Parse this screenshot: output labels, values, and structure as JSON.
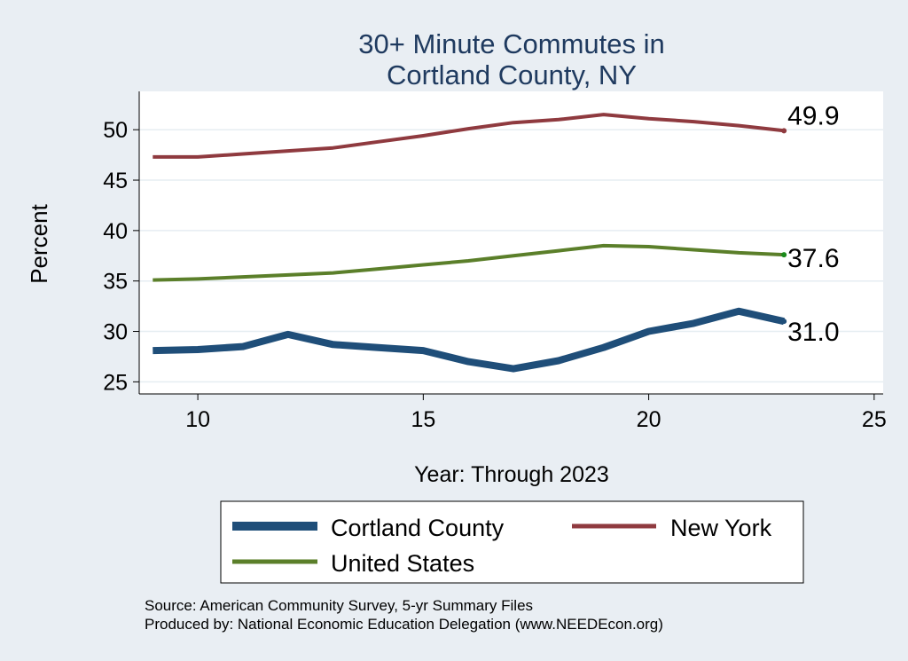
{
  "chart_data": {
    "type": "line",
    "title": [
      "30+ Minute Commutes in",
      "Cortland County, NY"
    ],
    "xlabel": "Year: Through 2023",
    "ylabel": "Percent",
    "xlim": [
      8.7,
      25.2
    ],
    "ylim": [
      23.8,
      53.8
    ],
    "xticks": [
      10,
      15,
      20,
      25
    ],
    "yticks": [
      25,
      30,
      35,
      40,
      45,
      50
    ],
    "grid": true,
    "legend_position": "bottom",
    "series": [
      {
        "name": "Cortland County",
        "color": "#1f4e79",
        "width": "thick",
        "x": [
          9,
          10,
          11,
          12,
          13,
          14,
          15,
          16,
          17,
          18,
          19,
          20,
          21,
          22,
          23
        ],
        "y": [
          28.1,
          28.2,
          28.5,
          29.7,
          28.7,
          28.4,
          28.1,
          27.0,
          26.3,
          27.1,
          28.4,
          30.0,
          30.8,
          32.0,
          31.0
        ],
        "end_label": "31.0"
      },
      {
        "name": "New York",
        "color": "#8f3a3f",
        "width": "medium",
        "x": [
          9,
          10,
          11,
          12,
          13,
          14,
          15,
          16,
          17,
          18,
          19,
          20,
          21,
          22,
          23
        ],
        "y": [
          47.3,
          47.3,
          47.6,
          47.9,
          48.2,
          48.8,
          49.4,
          50.1,
          50.7,
          51.0,
          51.5,
          51.1,
          50.8,
          50.4,
          49.9
        ],
        "end_label": "49.9"
      },
      {
        "name": "United States",
        "color": "#5b7f2a",
        "width": "medium",
        "x": [
          9,
          10,
          11,
          12,
          13,
          14,
          15,
          16,
          17,
          18,
          19,
          20,
          21,
          22,
          23
        ],
        "y": [
          35.1,
          35.2,
          35.4,
          35.6,
          35.8,
          36.2,
          36.6,
          37.0,
          37.5,
          38.0,
          38.5,
          38.4,
          38.1,
          37.8,
          37.6
        ],
        "end_label": "37.6"
      }
    ],
    "notes": [
      "Source: American Community Survey, 5-yr Summary Files",
      "Produced by: National Economic Education Delegation (www.NEEDEcon.org)"
    ]
  }
}
